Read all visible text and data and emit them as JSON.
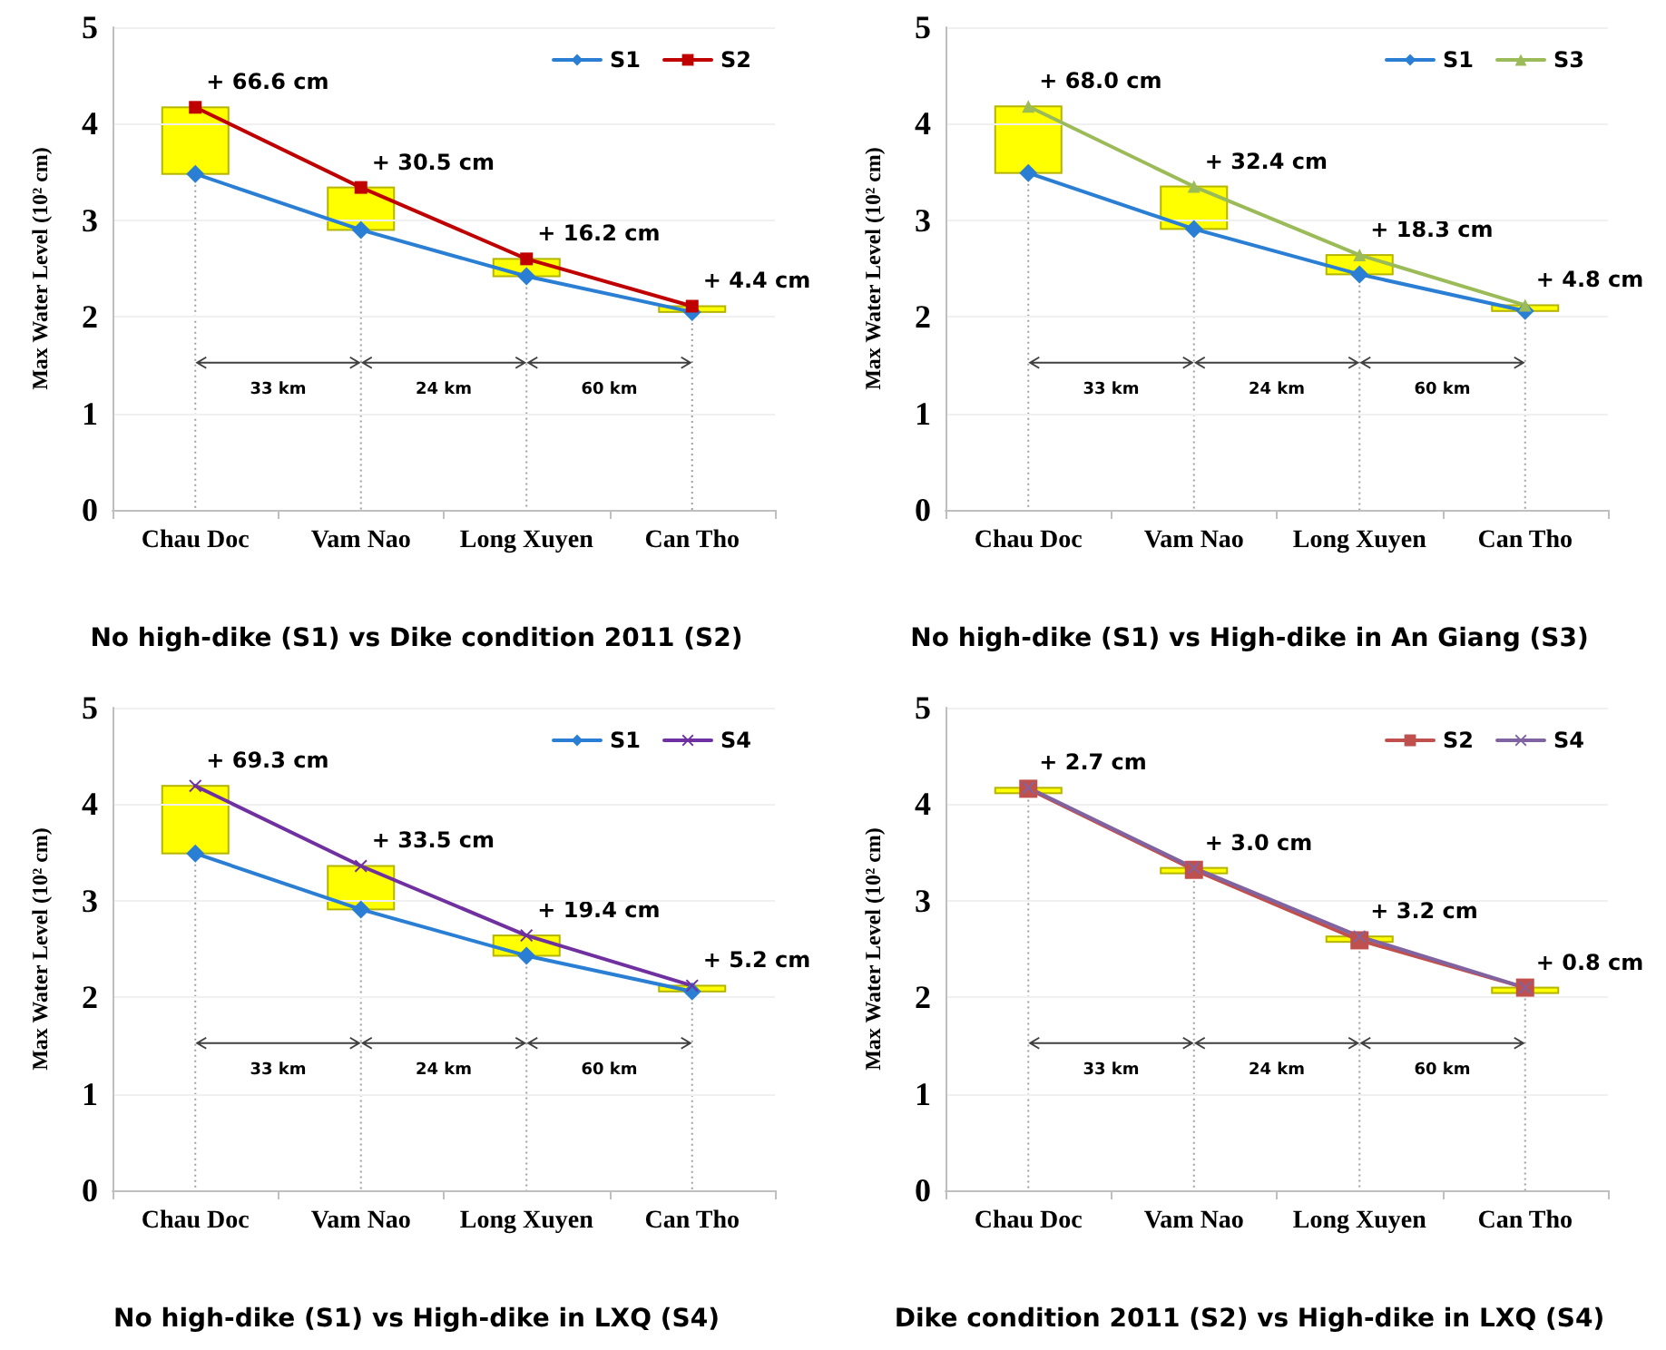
{
  "chart_data": [
    {
      "type": "line",
      "title": "No high-dike (S1) vs Dike condition 2011 (S2)",
      "ylabel": "Max Water Level (10² cm)",
      "categories": [
        "Chau Doc",
        "Vam Nao",
        "Long Xuyen",
        "Can Tho"
      ],
      "series": [
        {
          "name": "S1",
          "color": "#2a7fd4",
          "marker": "diamond",
          "values": [
            3.48,
            2.9,
            2.42,
            2.05
          ]
        },
        {
          "name": "S2",
          "color": "#c00000",
          "marker": "square",
          "values": [
            4.17,
            3.34,
            2.6,
            2.11
          ]
        }
      ],
      "ylim": [
        0,
        5
      ],
      "yticks": [
        0,
        1,
        2,
        3,
        4,
        5
      ],
      "grid": "y",
      "legend": "top right",
      "ref_lines": [
        {
          "axis": "x",
          "value": "Chau Doc",
          "color": "#a0a0a0",
          "line_style": "dotted"
        },
        {
          "axis": "x",
          "value": "Vam Nao",
          "color": "#a0a0a0",
          "line_style": "dotted"
        },
        {
          "axis": "x",
          "value": "Long Xuyen",
          "color": "#a0a0a0",
          "line_style": "dotted"
        },
        {
          "axis": "x",
          "value": "Can Tho",
          "color": "#a0a0a0",
          "line_style": "dotted"
        }
      ],
      "annotations": [
        {
          "text": "+ 66.6 cm",
          "x": "Chau Doc",
          "y": 4.17
        },
        {
          "text": "+ 30.5 cm",
          "x": "Vam Nao",
          "y": 3.34
        },
        {
          "text": "+ 16.2 cm",
          "x": "Long Xuyen",
          "y": 2.6
        },
        {
          "text": "+ 4.4 cm",
          "x": "Can Tho",
          "y": 2.11
        },
        "33 km",
        "24 km",
        "60 km"
      ]
    },
    {
      "type": "line",
      "title": "No high-dike (S1) vs High-dike in An Giang (S3)",
      "ylabel": "Max Water Level (10² cm)",
      "categories": [
        "Chau Doc",
        "Vam Nao",
        "Long Xuyen",
        "Can Tho"
      ],
      "series": [
        {
          "name": "S1",
          "color": "#2a7fd4",
          "marker": "diamond",
          "values": [
            3.49,
            2.91,
            2.44,
            2.06
          ]
        },
        {
          "name": "S3",
          "color": "#9bbb59",
          "marker": "triangle",
          "values": [
            4.18,
            3.35,
            2.64,
            2.12
          ]
        }
      ],
      "ylim": [
        0,
        5
      ],
      "yticks": [
        0,
        1,
        2,
        3,
        4,
        5
      ],
      "grid": "y",
      "legend": "top right",
      "ref_lines": [
        {
          "axis": "x",
          "value": "Chau Doc",
          "color": "#a0a0a0",
          "line_style": "dotted"
        },
        {
          "axis": "x",
          "value": "Vam Nao",
          "color": "#a0a0a0",
          "line_style": "dotted"
        },
        {
          "axis": "x",
          "value": "Long Xuyen",
          "color": "#a0a0a0",
          "line_style": "dotted"
        },
        {
          "axis": "x",
          "value": "Can Tho",
          "color": "#a0a0a0",
          "line_style": "dotted"
        }
      ],
      "annotations": [
        {
          "text": "+ 68.0 cm",
          "x": "Chau Doc",
          "y": 4.18
        },
        {
          "text": "+ 32.4 cm",
          "x": "Vam Nao",
          "y": 3.35
        },
        {
          "text": "+ 18.3 cm",
          "x": "Long Xuyen",
          "y": 2.64
        },
        {
          "text": "+ 4.8 cm",
          "x": "Can Tho",
          "y": 2.12
        },
        "33 km",
        "24 km",
        "60 km"
      ]
    },
    {
      "type": "line",
      "title": "No high-dike (S1) vs High-dike in LXQ (S4)",
      "ylabel": "Max Water Level (10² cm)",
      "categories": [
        "Chau Doc",
        "Vam Nao",
        "Long Xuyen",
        "Can Tho"
      ],
      "series": [
        {
          "name": "S1",
          "color": "#2a7fd4",
          "marker": "diamond",
          "values": [
            3.49,
            2.91,
            2.43,
            2.06
          ]
        },
        {
          "name": "S4",
          "color": "#7030a0",
          "marker": "cross",
          "values": [
            4.19,
            3.36,
            2.64,
            2.12
          ]
        }
      ],
      "ylim": [
        0,
        5
      ],
      "yticks": [
        0,
        1,
        2,
        3,
        4,
        5
      ],
      "grid": "y",
      "legend": "top right",
      "ref_lines": [
        {
          "axis": "x",
          "value": "Chau Doc",
          "color": "#a0a0a0",
          "line_style": "dotted"
        },
        {
          "axis": "x",
          "value": "Vam Nao",
          "color": "#a0a0a0",
          "line_style": "dotted"
        },
        {
          "axis": "x",
          "value": "Long Xuyen",
          "color": "#a0a0a0",
          "line_style": "dotted"
        },
        {
          "axis": "x",
          "value": "Can Tho",
          "color": "#a0a0a0",
          "line_style": "dotted"
        }
      ],
      "annotations": [
        {
          "text": "+ 69.3 cm",
          "x": "Chau Doc",
          "y": 4.19
        },
        {
          "text": "+ 33.5 cm",
          "x": "Vam Nao",
          "y": 3.36
        },
        {
          "text": "+ 19.4 cm",
          "x": "Long Xuyen",
          "y": 2.64
        },
        {
          "text": "+ 5.2 cm",
          "x": "Can Tho",
          "y": 2.12
        },
        "33 km",
        "24 km",
        "60 km"
      ]
    },
    {
      "type": "line",
      "title": "Dike condition 2011 (S2) vs High-dike in LXQ (S4)",
      "ylabel": "Max Water Level (10² cm)",
      "categories": [
        "Chau Doc",
        "Vam Nao",
        "Long Xuyen",
        "Can Tho"
      ],
      "series": [
        {
          "name": "S2",
          "color": "#c0504d",
          "marker": "square",
          "values": [
            4.16,
            3.32,
            2.59,
            2.1
          ]
        },
        {
          "name": "S4",
          "color": "#8064a2",
          "marker": "cross",
          "values": [
            4.17,
            3.34,
            2.63,
            2.1
          ]
        }
      ],
      "ylim": [
        0,
        5
      ],
      "yticks": [
        0,
        1,
        2,
        3,
        4,
        5
      ],
      "grid": "y",
      "legend": "top right",
      "ref_lines": [
        {
          "axis": "x",
          "value": "Chau Doc",
          "color": "#a0a0a0",
          "line_style": "dotted"
        },
        {
          "axis": "x",
          "value": "Vam Nao",
          "color": "#a0a0a0",
          "line_style": "dotted"
        },
        {
          "axis": "x",
          "value": "Long Xuyen",
          "color": "#a0a0a0",
          "line_style": "dotted"
        },
        {
          "axis": "x",
          "value": "Can Tho",
          "color": "#a0a0a0",
          "line_style": "dotted"
        }
      ],
      "annotations": [
        {
          "text": "+ 2.7 cm",
          "x": "Chau Doc",
          "y": 4.17
        },
        {
          "text": "+ 3.0 cm",
          "x": "Vam Nao",
          "y": 3.34
        },
        {
          "text": "+ 3.2 cm",
          "x": "Long Xuyen",
          "y": 2.63
        },
        {
          "text": "+ 0.8 cm",
          "x": "Can Tho",
          "y": 2.1
        },
        "33 km",
        "24 km",
        "60 km"
      ]
    }
  ]
}
